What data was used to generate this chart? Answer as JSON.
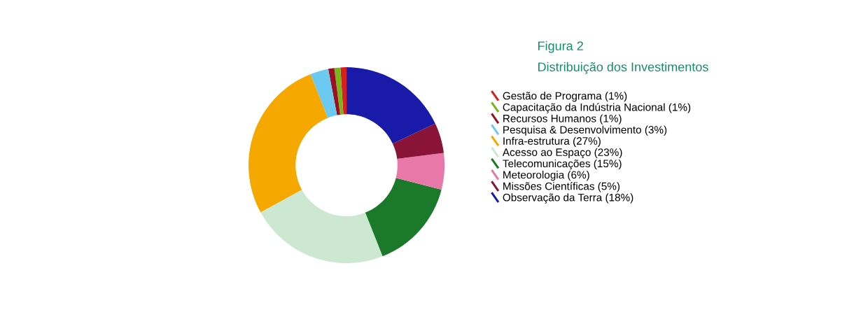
{
  "chart_data": {
    "type": "donut",
    "title": "Figura 2",
    "subtitle": "Distribuição dos Investimentos",
    "categories": [
      "Gestão de Programa (1%)",
      "Capacitação da Indústria Nacional (1%)",
      "Recursos Humanos (1%)",
      "Pesquisa & Desenvolvimento (3%)",
      "Infra-estrutura (27%)",
      "Acesso ao Espaço (23%)",
      "Telecomunicações (15%)",
      "Meteorologia (6%)",
      "Missões Científicas (5%)",
      "Observação da Terra (18%)"
    ],
    "values": [
      1,
      1,
      1,
      3,
      27,
      23,
      15,
      6,
      5,
      18
    ],
    "colors": [
      "#d62020",
      "#7ab51d",
      "#9b1020",
      "#6ccaf0",
      "#f5a800",
      "#cde8d0",
      "#1a7a2a",
      "#e878a8",
      "#8a1438",
      "#1a1aa8"
    ],
    "legend": "right"
  }
}
